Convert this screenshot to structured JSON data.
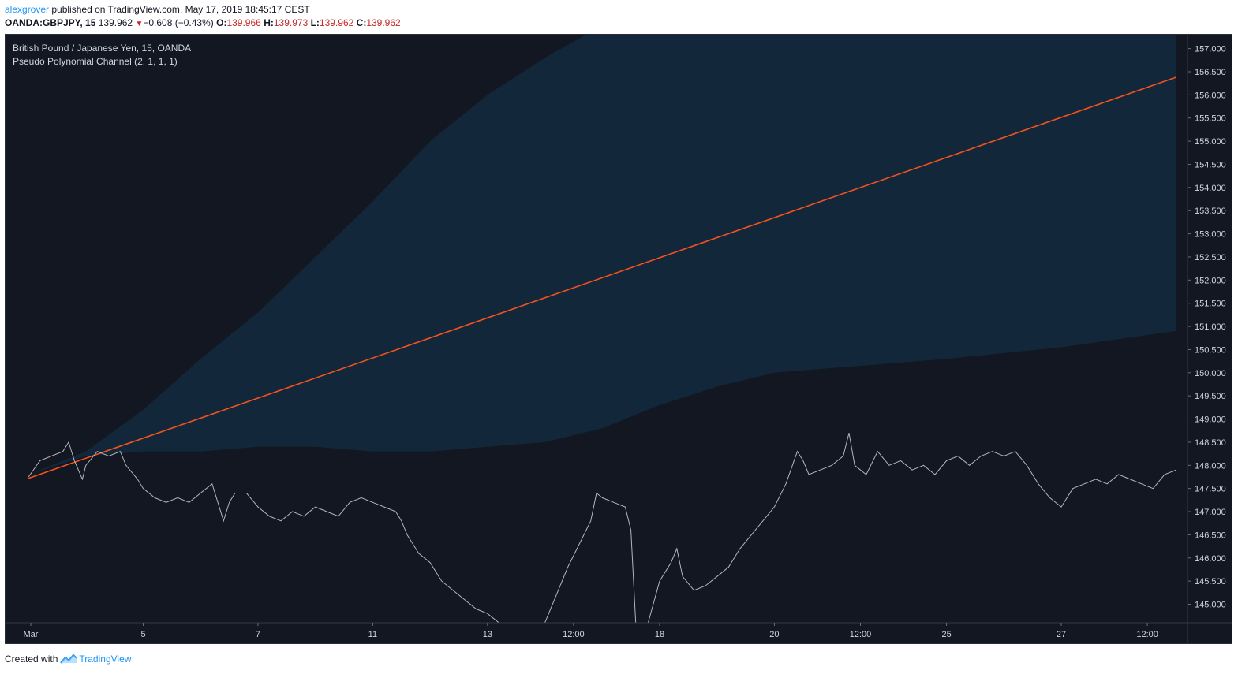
{
  "header": {
    "author": "alexgrover",
    "published_text": " published on TradingView.com, May 17, 2019 18:45:17 CEST",
    "symbol": "OANDA:GBPJPY, 15",
    "last": "139.962",
    "change": "−0.608 (−0.43%)",
    "o_label": "O:",
    "o_value": "139.966",
    "h_label": "H:",
    "h_value": "139.973",
    "l_label": "L:",
    "l_value": "139.962",
    "c_label": "C:",
    "c_value": "139.962"
  },
  "legend": {
    "title": "British Pound / Japanese Yen, 15, OANDA",
    "indicator": "Pseudo Polynomial Channel (2, 1, 1, 1)"
  },
  "footer": {
    "created_with": "Created with",
    "brand": "TradingView",
    "brand_icon": "tradingview-logo-icon"
  },
  "chart_data": {
    "type": "line",
    "y_axis_position": "right",
    "ylim": [
      144.6,
      157.3
    ],
    "grid": false,
    "y_ticks": [
      "157.000",
      "156.500",
      "156.000",
      "155.500",
      "155.000",
      "154.500",
      "154.000",
      "153.500",
      "153.000",
      "152.500",
      "152.000",
      "151.500",
      "151.000",
      "150.500",
      "150.000",
      "149.500",
      "149.000",
      "148.500",
      "148.000",
      "147.500",
      "147.000",
      "146.500",
      "146.000",
      "145.500",
      "145.000"
    ],
    "x_ticks": [
      "Mar",
      "5",
      "7",
      "11",
      "13",
      "12:00",
      "18",
      "20",
      "12:00",
      "25",
      "27",
      "12:00"
    ],
    "x_tick_positions": [
      0.2,
      10,
      20,
      30,
      40,
      47.5,
      55,
      65,
      72.5,
      80,
      90,
      97.5
    ],
    "x_range": [
      -2,
      101
    ],
    "channel": {
      "color": "#13273a",
      "upper": [
        [
          0,
          147.8
        ],
        [
          5,
          148.3
        ],
        [
          10,
          149.2
        ],
        [
          15,
          150.3
        ],
        [
          20,
          151.3
        ],
        [
          25,
          152.5
        ],
        [
          30,
          153.7
        ],
        [
          35,
          155.0
        ],
        [
          40,
          156.0
        ],
        [
          45,
          156.8
        ],
        [
          50,
          157.5
        ],
        [
          60,
          158.5
        ],
        [
          70,
          159.5
        ],
        [
          80,
          160.5
        ],
        [
          90,
          161.5
        ],
        [
          100,
          162.5
        ]
      ],
      "lower": [
        [
          0,
          147.8
        ],
        [
          5,
          148.2
        ],
        [
          10,
          148.3
        ],
        [
          15,
          148.3
        ],
        [
          20,
          148.4
        ],
        [
          25,
          148.4
        ],
        [
          30,
          148.3
        ],
        [
          35,
          148.3
        ],
        [
          40,
          148.4
        ],
        [
          45,
          148.5
        ],
        [
          50,
          148.8
        ],
        [
          55,
          149.3
        ],
        [
          60,
          149.7
        ],
        [
          65,
          150.0
        ],
        [
          70,
          150.1
        ],
        [
          75,
          150.2
        ],
        [
          80,
          150.3
        ],
        [
          90,
          150.55
        ],
        [
          100,
          150.9
        ]
      ]
    },
    "series": [
      {
        "role": "channel-midline",
        "color": "#f4511e",
        "points": [
          [
            0,
            147.72
          ],
          [
            100,
            156.38
          ]
        ]
      },
      {
        "role": "price",
        "color": "#b2b5be",
        "points": [
          [
            0,
            147.75
          ],
          [
            1,
            148.1
          ],
          [
            2,
            148.2
          ],
          [
            3,
            148.3
          ],
          [
            3.5,
            148.5
          ],
          [
            4,
            148.1
          ],
          [
            4.7,
            147.7
          ],
          [
            5,
            148.0
          ],
          [
            6,
            148.3
          ],
          [
            7,
            148.2
          ],
          [
            8,
            148.3
          ],
          [
            8.5,
            148.0
          ],
          [
            9,
            147.85
          ],
          [
            9.5,
            147.7
          ],
          [
            10,
            147.5
          ],
          [
            11,
            147.3
          ],
          [
            12,
            147.2
          ],
          [
            13,
            147.3
          ],
          [
            14,
            147.2
          ],
          [
            15,
            147.4
          ],
          [
            16,
            147.6
          ],
          [
            16.5,
            147.2
          ],
          [
            17,
            146.8
          ],
          [
            17.5,
            147.2
          ],
          [
            18,
            147.4
          ],
          [
            19,
            147.4
          ],
          [
            20,
            147.1
          ],
          [
            21,
            146.9
          ],
          [
            22,
            146.8
          ],
          [
            23,
            147.0
          ],
          [
            24,
            146.9
          ],
          [
            25,
            147.1
          ],
          [
            26,
            147.0
          ],
          [
            27,
            146.9
          ],
          [
            28,
            147.2
          ],
          [
            29,
            147.3
          ],
          [
            30,
            147.2
          ],
          [
            31,
            147.1
          ],
          [
            32,
            147.0
          ],
          [
            32.5,
            146.8
          ],
          [
            33,
            146.5
          ],
          [
            33.5,
            146.3
          ],
          [
            34,
            146.1
          ],
          [
            35,
            145.9
          ],
          [
            36,
            145.5
          ],
          [
            37,
            145.3
          ],
          [
            38,
            145.1
          ],
          [
            39,
            144.9
          ],
          [
            40,
            144.8
          ],
          [
            41,
            144.6
          ],
          [
            42,
            144.3
          ],
          [
            43,
            144.2
          ],
          [
            44,
            144.4
          ],
          [
            45,
            144.6
          ],
          [
            46,
            145.2
          ],
          [
            47,
            145.8
          ],
          [
            48,
            146.3
          ],
          [
            49,
            146.8
          ],
          [
            49.5,
            147.4
          ],
          [
            50,
            147.3
          ],
          [
            51,
            147.2
          ],
          [
            52,
            147.1
          ],
          [
            52.5,
            146.6
          ],
          [
            53,
            144.2
          ],
          [
            54,
            144.6
          ],
          [
            55,
            145.5
          ],
          [
            56,
            145.9
          ],
          [
            56.5,
            146.2
          ],
          [
            57,
            145.6
          ],
          [
            58,
            145.3
          ],
          [
            59,
            145.4
          ],
          [
            60,
            145.6
          ],
          [
            61,
            145.8
          ],
          [
            62,
            146.2
          ],
          [
            63,
            146.5
          ],
          [
            64,
            146.8
          ],
          [
            65,
            147.1
          ],
          [
            66,
            147.6
          ],
          [
            67,
            148.3
          ],
          [
            67.5,
            148.1
          ],
          [
            68,
            147.8
          ],
          [
            69,
            147.9
          ],
          [
            70,
            148.0
          ],
          [
            71,
            148.2
          ],
          [
            71.5,
            148.7
          ],
          [
            72,
            148.0
          ],
          [
            73,
            147.8
          ],
          [
            74,
            148.3
          ],
          [
            75,
            148.0
          ],
          [
            76,
            148.1
          ],
          [
            77,
            147.9
          ],
          [
            78,
            148.0
          ],
          [
            79,
            147.8
          ],
          [
            80,
            148.1
          ],
          [
            81,
            148.2
          ],
          [
            82,
            148.0
          ],
          [
            83,
            148.2
          ],
          [
            84,
            148.3
          ],
          [
            85,
            148.2
          ],
          [
            86,
            148.3
          ],
          [
            87,
            148.0
          ],
          [
            88,
            147.6
          ],
          [
            89,
            147.3
          ],
          [
            90,
            147.1
          ],
          [
            91,
            147.5
          ],
          [
            92,
            147.6
          ],
          [
            93,
            147.7
          ],
          [
            94,
            147.6
          ],
          [
            95,
            147.8
          ],
          [
            96,
            147.7
          ],
          [
            97,
            147.6
          ],
          [
            98,
            147.5
          ],
          [
            99,
            147.8
          ],
          [
            100,
            147.9
          ]
        ]
      }
    ],
    "price_series_visible_ranges": [
      [
        0,
        100
      ]
    ]
  }
}
